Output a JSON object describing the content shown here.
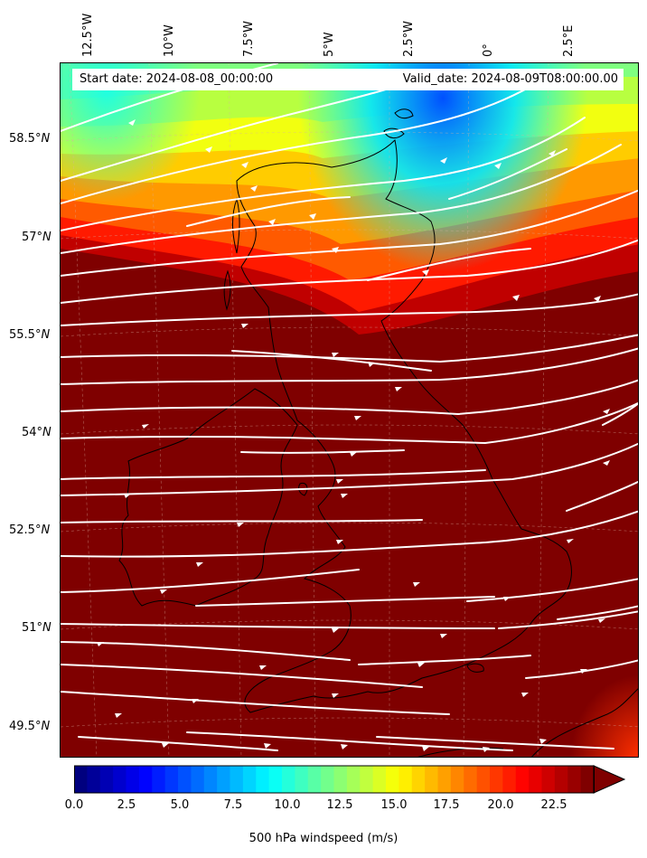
{
  "map": {
    "start_date": "Start date: 2024-08-08_00:00:00",
    "valid_date": "Valid_date: 2024-08-09T08:00:00.00",
    "longitude_labels": [
      "12.5°W",
      "10°W",
      "7.5°W",
      "5°W",
      "2.5°W",
      "0°",
      "2.5°E"
    ],
    "latitude_labels": [
      {
        "deg": "58.5°",
        "hem": "N"
      },
      {
        "deg": "57°",
        "hem": "N"
      },
      {
        "deg": "55.5°",
        "hem": "N"
      },
      {
        "deg": "54°",
        "hem": "N"
      },
      {
        "deg": "52.5°",
        "hem": "N"
      },
      {
        "deg": "51°",
        "hem": "N"
      },
      {
        "deg": "49.5°",
        "hem": "N"
      }
    ],
    "variable": "500 hPa windspeed",
    "streamline_color": "#ffffff",
    "coastline_color": "#000000",
    "flow_direction": "west-southwest to east-northeast"
  },
  "colorbar": {
    "label": "500 hPa windspeed (m/s)",
    "ticks": [
      "0.0",
      "2.5",
      "5.0",
      "7.5",
      "10.0",
      "12.5",
      "15.0",
      "17.5",
      "20.0",
      "22.5"
    ],
    "min": 0,
    "max": 25,
    "extend": "max",
    "colormap": "jet",
    "colors": [
      "#00007f",
      "#0000ff",
      "#007fff",
      "#00ffff",
      "#7fff7f",
      "#ffff00",
      "#ff7f00",
      "#ff0000",
      "#7f0000"
    ]
  }
}
